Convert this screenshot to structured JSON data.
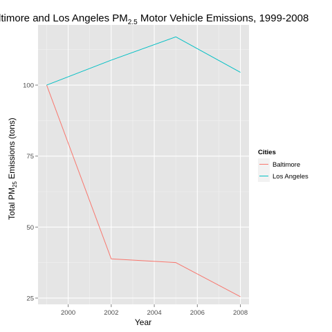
{
  "chart_data": {
    "type": "line",
    "title_prefix": "Baltimore and Los Angeles PM",
    "title_subscript": "2.5",
    "title_suffix": " Motor Vehicle Emissions, 1999-2008",
    "xlabel": "Year",
    "ylabel_prefix": "Total PM",
    "ylabel_subscript": "25",
    "ylabel_suffix": " Emissions (tons)",
    "x_ticks": [
      2000,
      2002,
      2004,
      2006,
      2008
    ],
    "x_tick_labels": [
      "2000",
      "2002",
      "2004",
      "2006",
      "2008"
    ],
    "y_ticks": [
      25,
      50,
      75,
      100
    ],
    "y_tick_labels": [
      "25",
      "50",
      "75",
      "100"
    ],
    "xlim": [
      1998.6,
      2008.4
    ],
    "ylim": [
      22.8,
      121.2
    ],
    "grid": true,
    "legend_position": "right",
    "legend_title": "Cities",
    "x": [
      1999,
      2002,
      2005,
      2008
    ],
    "series": [
      {
        "name": "Baltimore",
        "color": "#F8766D",
        "values": [
          100,
          38.8,
          37.5,
          25.5
        ]
      },
      {
        "name": "Los Angeles",
        "color": "#00BFC4",
        "values": [
          100,
          108.8,
          117,
          104.5
        ]
      }
    ]
  }
}
